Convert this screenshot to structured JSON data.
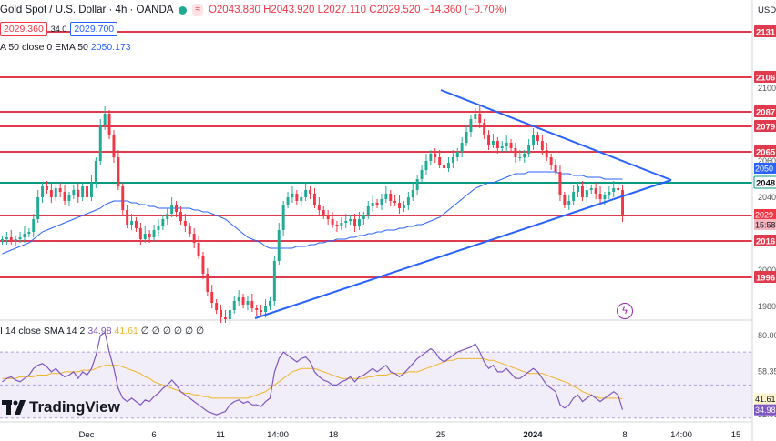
{
  "header": {
    "symbol": "Gold Spot / U.S. Dollar · 4h · OANDA",
    "open": "O2043.880",
    "high": "H2043.920",
    "low": "L2027.110",
    "close": "C2029.520",
    "change": "−14.360 (−0.70%)",
    "sell_price": "2029.360",
    "spread": "34.0",
    "buy_price": "2029.700",
    "ema_label": "A 50 close 0 EMA 50",
    "ema_value": "2050.173"
  },
  "rsi": {
    "label": "I 14 close SMA 14 2",
    "rsi_value": "34.98",
    "sma_value": "41.61",
    "extra": "∅ ∅ ∅ ∅ ∅ ∅"
  },
  "currency": "USD",
  "logo_text": "TradingView",
  "colors": {
    "up": "#22ab94",
    "down": "#f23645",
    "ema": "#2962ff",
    "rsi": "#7e57c2",
    "rsi_sma": "#f0b429",
    "level": "#e03a4e",
    "pivot": "#089981"
  },
  "chart_data": {
    "type": "candlestick",
    "ylim": [
      1970,
      2141
    ],
    "y_ticks": [
      "2100",
      "2060",
      "2040",
      "2000",
      "1980"
    ],
    "x_ticks": [
      "Dec",
      "6",
      "11",
      "14:00",
      "18",
      "25",
      "2024",
      "8",
      "14:00",
      "15"
    ],
    "price_levels": [
      {
        "label": "2131",
        "value": 2131
      },
      {
        "label": "2106",
        "value": 2106
      },
      {
        "label": "2087",
        "value": 2087
      },
      {
        "label": "2079",
        "value": 2079
      },
      {
        "label": "2065",
        "value": 2065
      },
      {
        "label": "2048",
        "value": 2048,
        "pivot": true
      },
      {
        "label": "2030",
        "value": 2030
      },
      {
        "label": "2016",
        "value": 2016
      },
      {
        "label": "1996",
        "value": 1996
      }
    ],
    "axis_badges": [
      {
        "label": "2050",
        "value": 2050.2,
        "kind": "ema"
      },
      {
        "label": "2029",
        "value": 2029.5,
        "kind": "price"
      },
      {
        "label": "15:58",
        "value": 2025,
        "kind": "timer"
      }
    ],
    "closes": [
      2017,
      2018,
      2016,
      2017,
      2018,
      2020,
      2021,
      2028,
      2040,
      2046,
      2044,
      2040,
      2045,
      2043,
      2038,
      2041,
      2044,
      2040,
      2046,
      2040,
      2048,
      2060,
      2080,
      2086,
      2074,
      2062,
      2046,
      2033,
      2025,
      2027,
      2023,
      2017,
      2020,
      2018,
      2022,
      2024,
      2028,
      2031,
      2036,
      2032,
      2027,
      2024,
      2020,
      2015,
      2008,
      1998,
      1988,
      1982,
      1978,
      1974,
      1973,
      1978,
      1983,
      1985,
      1981,
      1983,
      1979,
      1978,
      1977,
      1980,
      1983,
      2005,
      2022,
      2036,
      2040,
      2042,
      2038,
      2040,
      2044,
      2042,
      2036,
      2033,
      2030,
      2028,
      2025,
      2024,
      2026,
      2027,
      2028,
      2024,
      2028,
      2030,
      2035,
      2037,
      2036,
      2039,
      2042,
      2038,
      2037,
      2034,
      2036,
      2040,
      2044,
      2050,
      2055,
      2060,
      2064,
      2062,
      2058,
      2056,
      2059,
      2062,
      2065,
      2070,
      2076,
      2083,
      2086,
      2081,
      2074,
      2069,
      2071,
      2067,
      2068,
      2070,
      2067,
      2062,
      2062,
      2064,
      2069,
      2074,
      2071,
      2066,
      2062,
      2058,
      2054,
      2041,
      2036,
      2038,
      2043,
      2046,
      2040,
      2044,
      2045,
      2042,
      2039,
      2041,
      2043,
      2045,
      2044,
      2029.5
    ],
    "ema50": [
      2009,
      2010,
      2011,
      2012,
      2013,
      2014,
      2015,
      2017,
      2019,
      2021,
      2022,
      2023,
      2024,
      2025,
      2026,
      2027,
      2028,
      2029,
      2030,
      2031,
      2032,
      2033,
      2034,
      2036,
      2037,
      2038,
      2038,
      2038,
      2038,
      2037,
      2037,
      2036,
      2036,
      2035,
      2035,
      2034,
      2034,
      2034,
      2034,
      2034,
      2034,
      2034,
      2034,
      2033,
      2033,
      2032,
      2032,
      2031,
      2030,
      2029,
      2028,
      2026,
      2024,
      2022,
      2020,
      2018,
      2017,
      2016,
      2015,
      2013,
      2012,
      2012,
      2012,
      2012,
      2012,
      2012,
      2013,
      2013,
      2013,
      2014,
      2014,
      2015,
      2015,
      2016,
      2016,
      2017,
      2017,
      2017,
      2018,
      2018,
      2019,
      2019,
      2020,
      2020,
      2021,
      2021,
      2022,
      2022,
      2022,
      2023,
      2023,
      2024,
      2024,
      2025,
      2025,
      2026,
      2027,
      2028,
      2029,
      2031,
      2033,
      2035,
      2037,
      2039,
      2041,
      2043,
      2045,
      2046,
      2047,
      2048,
      2048,
      2049,
      2050,
      2051,
      2052,
      2053,
      2053,
      2053,
      2054,
      2054,
      2054,
      2054,
      2054,
      2054,
      2054,
      2053,
      2053,
      2053,
      2052,
      2052,
      2052,
      2051,
      2051,
      2051,
      2051,
      2050,
      2050,
      2050,
      2050,
      2050
    ],
    "rsi_ylim": [
      30,
      85
    ],
    "rsi_ticks": [
      "80.00",
      "58.35",
      "32.05"
    ],
    "rsi_axis_badges": [
      {
        "label": "41.61",
        "value": 41.61,
        "kind": "sma"
      },
      {
        "label": "34.98",
        "value": 34.98,
        "kind": "rsi"
      }
    ],
    "rsi_values": [
      52,
      54,
      55,
      53,
      52,
      54,
      56,
      60,
      62,
      63,
      61,
      58,
      60,
      57,
      55,
      56,
      58,
      54,
      58,
      56,
      60,
      68,
      80,
      82,
      70,
      60,
      48,
      42,
      40,
      42,
      40,
      38,
      41,
      40,
      43,
      45,
      48,
      50,
      53,
      50,
      46,
      44,
      42,
      40,
      38,
      36,
      34,
      33,
      32,
      33,
      34,
      38,
      40,
      41,
      39,
      40,
      38,
      38,
      37,
      40,
      42,
      58,
      66,
      70,
      68,
      66,
      64,
      66,
      67,
      64,
      58,
      55,
      53,
      52,
      50,
      50,
      52,
      53,
      55,
      52,
      55,
      56,
      58,
      60,
      58,
      60,
      62,
      58,
      57,
      55,
      57,
      60,
      63,
      66,
      68,
      70,
      72,
      70,
      66,
      64,
      66,
      68,
      70,
      71,
      72,
      73,
      75,
      70,
      64,
      60,
      62,
      58,
      58,
      60,
      57,
      54,
      54,
      56,
      58,
      60,
      58,
      54,
      50,
      48,
      46,
      38,
      36,
      38,
      42,
      44,
      40,
      42,
      44,
      42,
      40,
      42,
      44,
      46,
      44,
      34.98
    ],
    "rsi_sma": [
      54,
      54,
      54,
      54,
      55,
      55,
      55,
      55,
      56,
      56,
      56,
      57,
      57,
      57,
      58,
      58,
      58,
      58,
      59,
      59,
      59,
      60,
      61,
      62,
      62,
      62,
      62,
      61,
      60,
      59,
      58,
      57,
      55,
      54,
      52,
      51,
      50,
      49,
      48,
      47,
      46,
      45,
      45,
      44,
      44,
      43,
      43,
      42,
      42,
      42,
      42,
      42,
      42,
      42,
      42,
      42,
      43,
      44,
      45,
      46,
      48,
      50,
      52,
      54,
      56,
      58,
      59,
      60,
      60,
      60,
      60,
      59,
      58,
      57,
      56,
      55,
      54,
      54,
      54,
      54,
      54,
      54,
      55,
      55,
      56,
      56,
      56,
      57,
      57,
      57,
      57,
      58,
      58,
      58,
      59,
      60,
      61,
      62,
      63,
      64,
      65,
      65,
      66,
      66,
      66,
      66,
      66,
      66,
      66,
      65,
      65,
      64,
      63,
      62,
      61,
      60,
      59,
      58,
      57,
      57,
      57,
      57,
      56,
      55,
      54,
      53,
      52,
      51,
      49,
      48,
      46,
      45,
      44,
      43,
      42,
      42,
      42,
      42,
      42,
      41.61
    ]
  }
}
